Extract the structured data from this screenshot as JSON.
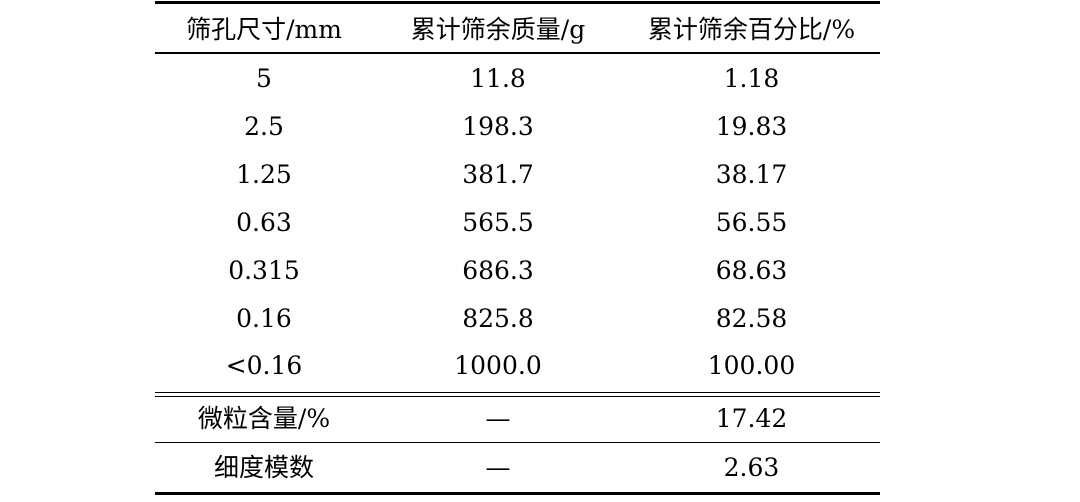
{
  "table": {
    "headers": [
      "筛孔尺寸/mm",
      "累计筛余质量/g",
      "累计筛余百分比/%"
    ],
    "rows": [
      [
        "5",
        "11.8",
        "1.18"
      ],
      [
        "2.5",
        "198.3",
        "19.83"
      ],
      [
        "1.25",
        "381.7",
        "38.17"
      ],
      [
        "0.63",
        "565.5",
        "56.55"
      ],
      [
        "0.315",
        "686.3",
        "68.63"
      ],
      [
        "0.16",
        "825.8",
        "82.58"
      ],
      [
        "<0.16",
        "1000.0",
        "100.00"
      ]
    ],
    "summary": [
      [
        "微粒含量/%",
        "—",
        "17.42"
      ],
      [
        "细度模数",
        "—",
        "2.63"
      ]
    ]
  }
}
